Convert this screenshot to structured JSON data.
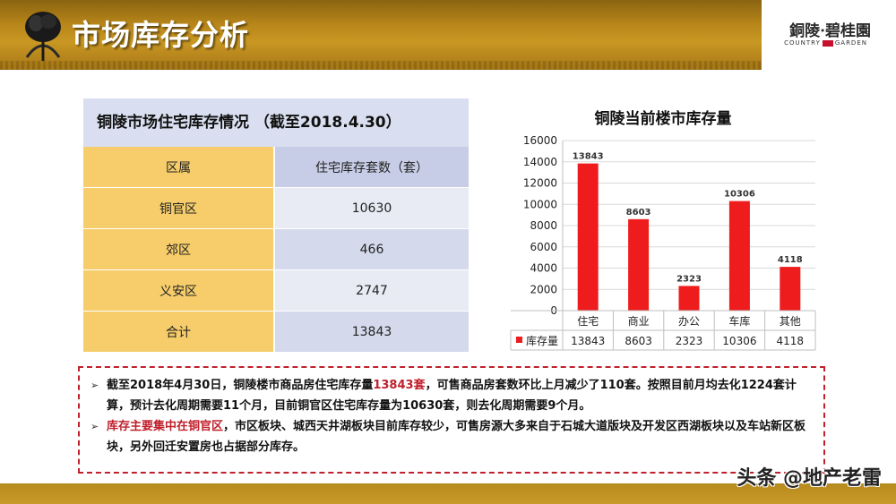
{
  "header": {
    "title": "市场库存分析",
    "brand_cn": "銅陵·碧桂園",
    "brand_en_left": "COUNTRY",
    "brand_en_right": "GARDEN"
  },
  "table": {
    "title": "铜陵市场住宅库存情况 （截至2018.4.30）",
    "headers": [
      "区属",
      "住宅库存套数（套）"
    ],
    "rows": [
      {
        "district": "铜官区",
        "count": "10630"
      },
      {
        "district": "郊区",
        "count": "466"
      },
      {
        "district": "义安区",
        "count": "2747"
      },
      {
        "district": "合计",
        "count": "13843"
      }
    ]
  },
  "chart_data": {
    "type": "bar",
    "title": "铜陵当前楼市库存量",
    "categories": [
      "住宅",
      "商业",
      "办公",
      "车库",
      "其他"
    ],
    "series": [
      {
        "name": "库存量",
        "values": [
          13843,
          8603,
          2323,
          10306,
          4118
        ],
        "color": "#ee1c1c"
      }
    ],
    "yticks": [
      0,
      2000,
      4000,
      6000,
      8000,
      10000,
      12000,
      14000,
      16000
    ],
    "ylim": [
      0,
      16000
    ],
    "grid": true,
    "data_table": true
  },
  "notes": {
    "p1_a": "截至2018年4月30日，铜陵楼市商品房住宅库存量",
    "p1_hl": "13843套",
    "p1_b": "，可售商品房套数环比上月减少了110套。按照目前月均去化1224套计算，预计去化周期需要11个月，目前铜官区住宅库存量为10630套，则去化周期需要9个月。",
    "p2_hl": "库存主要集中在铜官区",
    "p2_b": "，市区板块、城西天井湖板块目前库存较少，可售房源大多来自于石城大道版块及开发区西湖板块以及车站新区板块，另外回迁安置房也占据部分库存。"
  },
  "watermark": "头条 @地产老雷",
  "colors": {
    "gold": "#c99722",
    "accent_red": "#c0202c",
    "bar_red": "#ee1c1c"
  }
}
